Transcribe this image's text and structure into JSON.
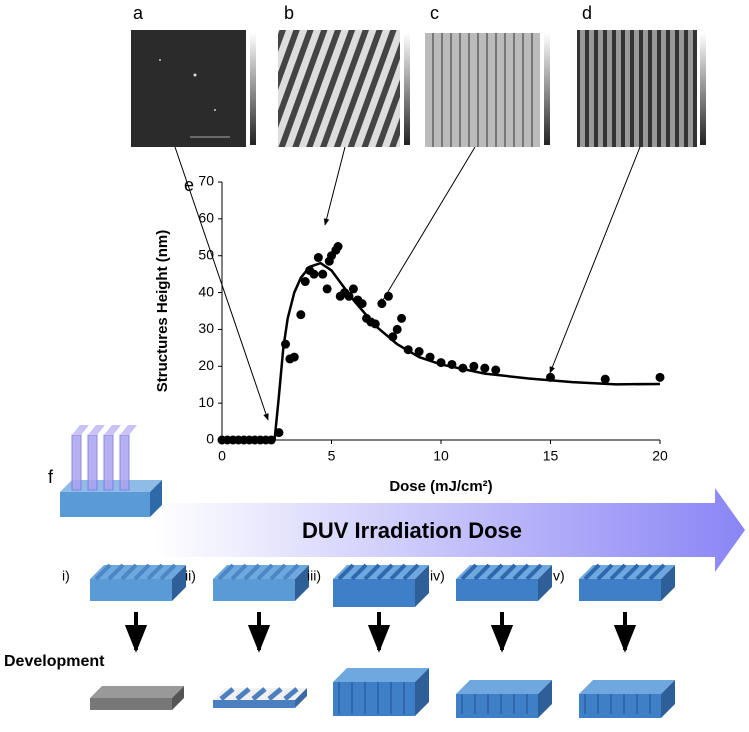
{
  "panels": {
    "labels": [
      "a",
      "b",
      "c",
      "d"
    ]
  },
  "chart_data": {
    "type": "scatter",
    "panel_label": "e",
    "xlabel": "Dose (mJ/cm²)",
    "ylabel": "Structures Height (nm)",
    "xlim": [
      0,
      20
    ],
    "ylim": [
      0,
      70
    ],
    "xticks": [
      0,
      5,
      10,
      15,
      20
    ],
    "yticks": [
      0,
      10,
      20,
      30,
      40,
      50,
      60,
      70
    ],
    "series": [
      {
        "type": "scatter",
        "color": "#000000",
        "x": [
          0,
          0.25,
          0.5,
          0.75,
          1,
          1.25,
          1.5,
          1.75,
          2,
          2.25,
          2.6,
          2.9,
          3.1,
          3.3,
          3.6,
          3.8,
          4.0,
          4.2,
          4.4,
          4.6,
          4.8,
          4.9,
          5.0,
          5.2,
          5.3,
          5.4,
          5.6,
          5.8,
          6.0,
          6.2,
          6.4,
          6.6,
          6.8,
          7.0,
          7.3,
          7.6,
          7.8,
          8.0,
          8.2,
          8.5,
          9.0,
          9.5,
          10,
          10.5,
          11,
          11.5,
          12,
          12.5,
          15,
          17.5,
          20
        ],
        "values": [
          0,
          0,
          0,
          0,
          0,
          0,
          0,
          0,
          0,
          0,
          2,
          26,
          22,
          22.5,
          34,
          43,
          46,
          45,
          49.5,
          45,
          41,
          48.5,
          50,
          51.5,
          52.5,
          39,
          40,
          39,
          41,
          38,
          37,
          33,
          32,
          31.5,
          37,
          39,
          28,
          30,
          33,
          24.5,
          24,
          22.5,
          21,
          20.5,
          19.5,
          20,
          19.5,
          19,
          17,
          16.5,
          17
        ]
      },
      {
        "type": "line",
        "color": "#000000",
        "x": [
          2.4,
          2.6,
          2.8,
          3,
          3.3,
          3.6,
          4,
          4.5,
          5,
          5.5,
          6,
          7,
          8,
          9,
          10,
          12,
          14,
          16,
          18,
          20
        ],
        "values": [
          0,
          12,
          25,
          33,
          40,
          44,
          47,
          48,
          46,
          42,
          38,
          31,
          26,
          22.5,
          20.5,
          18,
          16.7,
          15.7,
          15.1,
          15.2
        ]
      }
    ]
  },
  "schematic": {
    "panel_label": "f",
    "arrow_label": "DUV Irradiation Dose",
    "development_label": "Development",
    "steps": [
      "i)",
      "ii)",
      "iii)",
      "iv)",
      "v)"
    ]
  }
}
